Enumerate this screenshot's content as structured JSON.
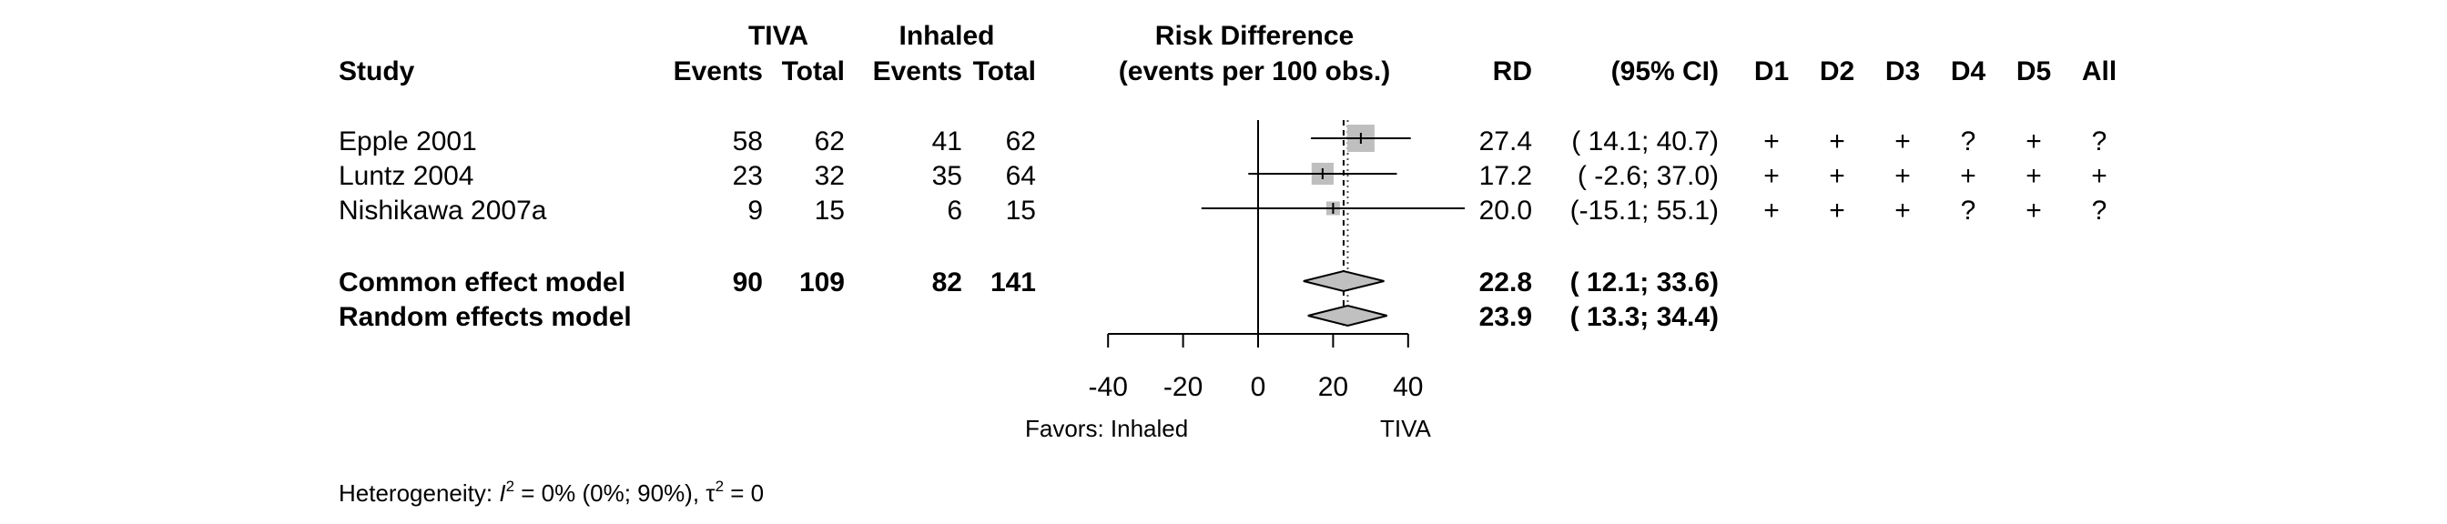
{
  "header": {
    "group1_title": "TIVA",
    "group2_title": "Inhaled",
    "rd_title_line1": "Risk Difference",
    "rd_title_line2": "(events per 100 obs.)",
    "study": "Study",
    "events1": "Events",
    "total1": "Total",
    "events2": "Events",
    "total2": "Total",
    "rd": "RD",
    "ci": "(95% CI)",
    "d1": "D1",
    "d2": "D2",
    "d3": "D3",
    "d4": "D4",
    "d5": "D5",
    "all": "All"
  },
  "studies": [
    {
      "name": "Epple 2001",
      "events1": "58",
      "total1": "62",
      "events2": "41",
      "total2": "62",
      "rd_text": "27.4",
      "ci_text": "( 14.1; 40.7)",
      "d1": "+",
      "d2": "+",
      "d3": "+",
      "d4": "?",
      "d5": "+",
      "all": "?"
    },
    {
      "name": "Luntz 2004",
      "events1": "23",
      "total1": "32",
      "events2": "35",
      "total2": "64",
      "rd_text": "17.2",
      "ci_text": "( -2.6; 37.0)",
      "d1": "+",
      "d2": "+",
      "d3": "+",
      "d4": "+",
      "d5": "+",
      "all": "+"
    },
    {
      "name": "Nishikawa 2007a",
      "events1": "9",
      "total1": "15",
      "events2": "6",
      "total2": "15",
      "rd_text": "20.0",
      "ci_text": "(-15.1; 55.1)",
      "d1": "+",
      "d2": "+",
      "d3": "+",
      "d4": "?",
      "d5": "+",
      "all": "?"
    }
  ],
  "pooled": [
    {
      "name": "Common effect model",
      "events1": "90",
      "total1": "109",
      "events2": "82",
      "total2": "141",
      "rd_text": "22.8",
      "ci_text": "( 12.1; 33.6)"
    },
    {
      "name": "Random effects model",
      "events1": "",
      "total1": "",
      "events2": "",
      "total2": "",
      "rd_text": "23.9",
      "ci_text": "( 13.3; 34.4)"
    }
  ],
  "axis": {
    "ticks": [
      "-40",
      "-20",
      "0",
      "20",
      "40"
    ],
    "favors_left": "Favors: Inhaled",
    "favors_right": "TIVA"
  },
  "heterogeneity": {
    "label_prefix": "Heterogeneity: ",
    "i2_symbol": "I",
    "i2_sup": "2",
    "i2_value": " = 0% (0%; 90%), ",
    "tau_symbol": "τ",
    "tau_sup": "2",
    "tau_value": " = 0"
  },
  "chart_data": {
    "type": "forest",
    "measure": "Risk Difference (events per 100 obs.)",
    "xlim": [
      -40,
      40
    ],
    "x_ticks": [
      -40,
      -20,
      0,
      20,
      40
    ],
    "reference_line": 0,
    "studies": [
      {
        "study": "Epple 2001",
        "rd": 27.4,
        "lower": 14.1,
        "upper": 40.7,
        "weight": 1.0
      },
      {
        "study": "Luntz 2004",
        "rd": 17.2,
        "lower": -2.6,
        "upper": 37.0,
        "weight": 0.65
      },
      {
        "study": "Nishikawa 2007a",
        "rd": 20.0,
        "lower": -15.1,
        "upper": 55.1,
        "weight": 0.25
      }
    ],
    "pooled": [
      {
        "model": "Common effect model",
        "rd": 22.8,
        "lower": 12.1,
        "upper": 33.6
      },
      {
        "model": "Random effects model",
        "rd": 23.9,
        "lower": 13.3,
        "upper": 34.4
      }
    ],
    "colors": {
      "box": "#bfbfbf",
      "diamond": "#c0c0c0",
      "line": "#000000"
    }
  }
}
